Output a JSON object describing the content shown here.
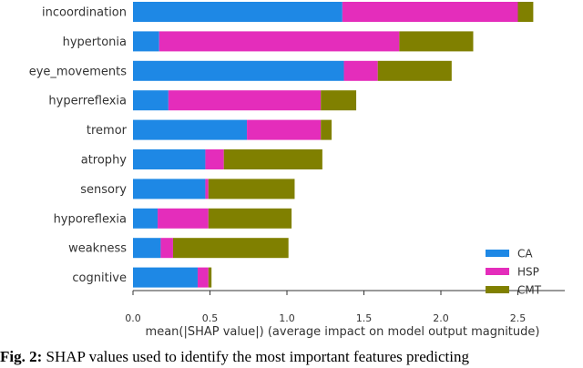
{
  "chart_data": {
    "type": "bar",
    "orientation": "horizontal",
    "stacked": true,
    "categories": [
      "incoordination",
      "hypertonia",
      "eye_movements",
      "hyperreflexia",
      "tremor",
      "atrophy",
      "sensory",
      "hyporeflexia",
      "weakness",
      "cognitive"
    ],
    "series": [
      {
        "name": "CA",
        "color": "#1E88E5",
        "values": [
          1.36,
          0.17,
          1.37,
          0.23,
          0.74,
          0.47,
          0.47,
          0.16,
          0.18,
          0.42
        ]
      },
      {
        "name": "HSP",
        "color": "#E42DBB",
        "values": [
          1.14,
          1.56,
          0.22,
          0.99,
          0.48,
          0.12,
          0.02,
          0.33,
          0.08,
          0.07
        ]
      },
      {
        "name": "CMT",
        "color": "#808000",
        "values": [
          0.1,
          0.48,
          0.48,
          0.23,
          0.07,
          0.64,
          0.56,
          0.54,
          0.75,
          0.02
        ]
      }
    ],
    "xlim": [
      0,
      2.7
    ],
    "xticks": [
      "0.0",
      "0.5",
      "1.0",
      "1.5",
      "2.0",
      "2.5"
    ],
    "xtick_values": [
      0,
      0.5,
      1.0,
      1.5,
      2.0,
      2.5
    ],
    "xlabel": "mean(|SHAP value|) (average impact on model output magnitude)",
    "legend_position": "lower-right"
  },
  "caption": {
    "label": "Fig. 2:",
    "text": "SHAP values used to identify the most important features predicting"
  }
}
